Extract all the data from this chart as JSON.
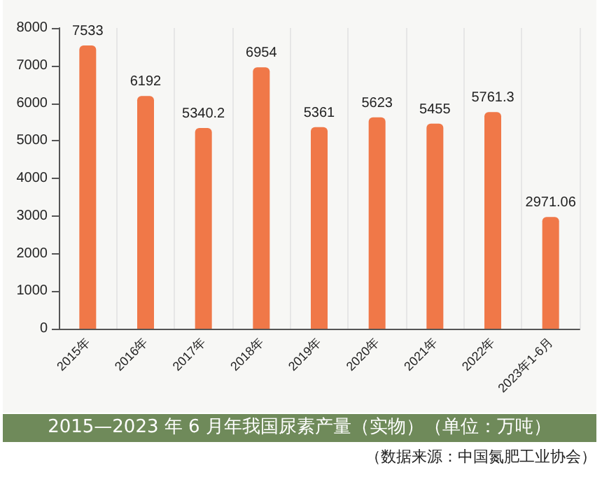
{
  "chart_data": {
    "type": "bar",
    "title": "2015—2023 年 6 月年我国尿素产量（实物）（单位：万吨）",
    "annotations": [
      "（数据来源：中国氮肥工业协会）"
    ],
    "categories": [
      "2015年",
      "2016年",
      "2017年",
      "2018年",
      "2019年",
      "2020年",
      "2021年",
      "2022年",
      "2023年1-6月"
    ],
    "values": [
      7533,
      6192,
      5340.2,
      6954,
      5361,
      5623,
      5455,
      5761.3,
      2971.06
    ],
    "color": "#f07848",
    "ylim": [
      0,
      8000
    ],
    "yticks": [
      0,
      1000,
      2000,
      3000,
      4000,
      5000,
      6000,
      7000,
      8000
    ],
    "grid": "x",
    "data_labels": true
  }
}
